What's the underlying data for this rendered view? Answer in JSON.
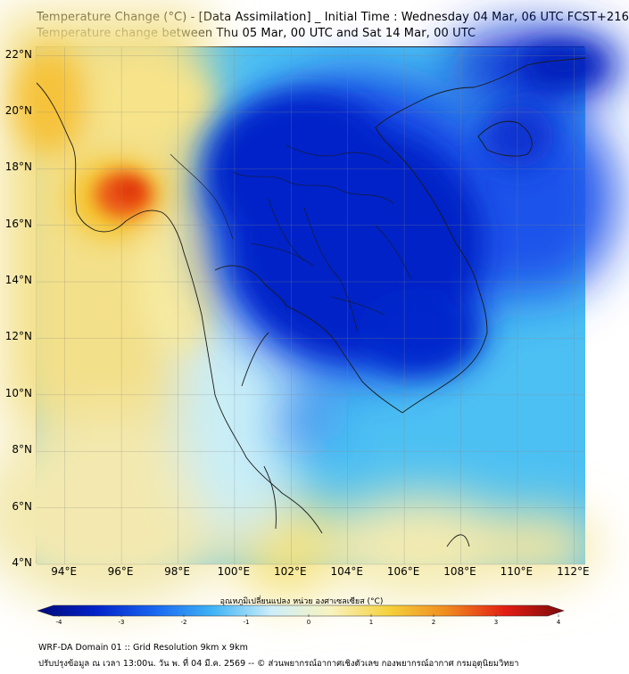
{
  "title": {
    "line1": "Temperature Change (°C) - [Data Assimilation] _ Initial Time : Wednesday 04 Mar, 06 UTC FCST+216",
    "line2": "Temperature change between Thu 05 Mar, 00 UTC and Sat 14 Mar, 00 UTC"
  },
  "map": {
    "lat_labels": [
      "22°N",
      "20°N",
      "18°N",
      "16°N",
      "14°N",
      "12°N",
      "10°N",
      "8°N",
      "6°N",
      "4°N"
    ],
    "lon_labels": [
      "94°E",
      "96°E",
      "98°E",
      "100°E",
      "102°E",
      "104°E",
      "106°E",
      "108°E",
      "110°E",
      "112°E"
    ],
    "lat_range": [
      4,
      22.3
    ],
    "lon_range": [
      93,
      112.4
    ]
  },
  "colorbar": {
    "title": "อุณหภูมิเปลี่ยนแปลง หน่วย องศาเซลเซียส (°C)",
    "ticks": [
      "-4",
      "-3",
      "-2",
      "-1",
      "0",
      "1",
      "2",
      "3",
      "4"
    ],
    "range": [
      -4,
      4
    ],
    "colors": [
      "#020a7a",
      "#0322c8",
      "#1a66f0",
      "#3fb4f5",
      "#cdeef8",
      "#f8f3c0",
      "#f5d23c",
      "#f08a1e",
      "#e21e12",
      "#7a0a0a"
    ]
  },
  "footer": {
    "line1": "WRF-DA Domain 01 :: Grid Resolution 9km x 9km",
    "line2": "ปรับปรุงข้อมูล ณ เวลา 13:00น. วัน พ. ที่ 04 มี.ค. 2569 -- © ส่วนพยากรณ์อากาศเชิงตัวเลข กองพยากรณ์อากาศ กรมอุตุนิยมวิทยา"
  }
}
